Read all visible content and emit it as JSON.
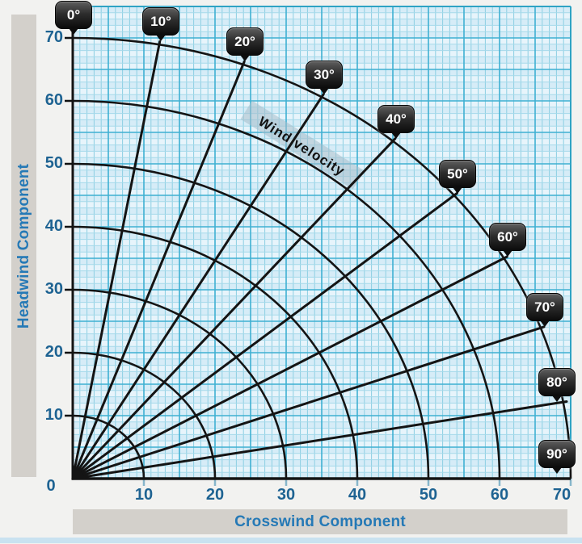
{
  "chart_data": {
    "type": "line",
    "title": "",
    "xlabel": "Crosswind Component",
    "ylabel": "Headwind Component",
    "annotation": "Wind velocity",
    "xlim": [
      0,
      70
    ],
    "ylim": [
      0,
      75
    ],
    "grid": true,
    "legend": false,
    "x_ticks": [
      0,
      10,
      20,
      30,
      40,
      50,
      60,
      70
    ],
    "y_ticks": [
      0,
      10,
      20,
      30,
      40,
      50,
      60,
      70
    ],
    "x_tick_labels": [
      "0",
      "10",
      "20",
      "30",
      "40",
      "50",
      "60",
      "70"
    ],
    "y_tick_labels": [
      "0",
      "10",
      "20",
      "30",
      "40",
      "50",
      "60",
      "70"
    ],
    "wind_angle_lines_deg": [
      0,
      10,
      20,
      30,
      40,
      50,
      60,
      70,
      80,
      90
    ],
    "wind_velocity_arcs": [
      10,
      20,
      30,
      40,
      50,
      60,
      70
    ],
    "description": "Radial lines from the origin mark wind angle off runway heading (0°-90° in 10° steps); concentric arcs mark wind velocity (10-70 in steps of 10). Headwind component is read on the y-axis, crosswind component on the x-axis."
  },
  "axes": {
    "origin_label": "0"
  },
  "badges": [
    {
      "angle": 0,
      "label": "0°"
    },
    {
      "angle": 10,
      "label": "10°"
    },
    {
      "angle": 20,
      "label": "20°"
    },
    {
      "angle": 30,
      "label": "30°"
    },
    {
      "angle": 40,
      "label": "40°"
    },
    {
      "angle": 50,
      "label": "50°"
    },
    {
      "angle": 60,
      "label": "60°"
    },
    {
      "angle": 70,
      "label": "70°"
    },
    {
      "angle": 80,
      "label": "80°"
    },
    {
      "angle": 90,
      "label": "90°"
    }
  ],
  "colors": {
    "page_bg": "#f2f2f0",
    "grid_bg": "#d6ecf7",
    "grid_bg_alt": "#e7f4fb",
    "grid_minor_v": "#8ccfe3",
    "grid_minor_h": "#a5d9ea",
    "grid_major": "#3fb0d2",
    "grid_border": "#2ea3c4",
    "chart_line": "#141414",
    "tick_label": "#1e6392",
    "axis_title": "#2579b6",
    "x_tick_mark": "#87b6cb",
    "badge_text": "#ffffff",
    "title_bar_bg": "#d3d0cb",
    "bottom_strip": "#c9e2f0",
    "annotation_bg": "rgba(165,190,202,0.55)"
  }
}
